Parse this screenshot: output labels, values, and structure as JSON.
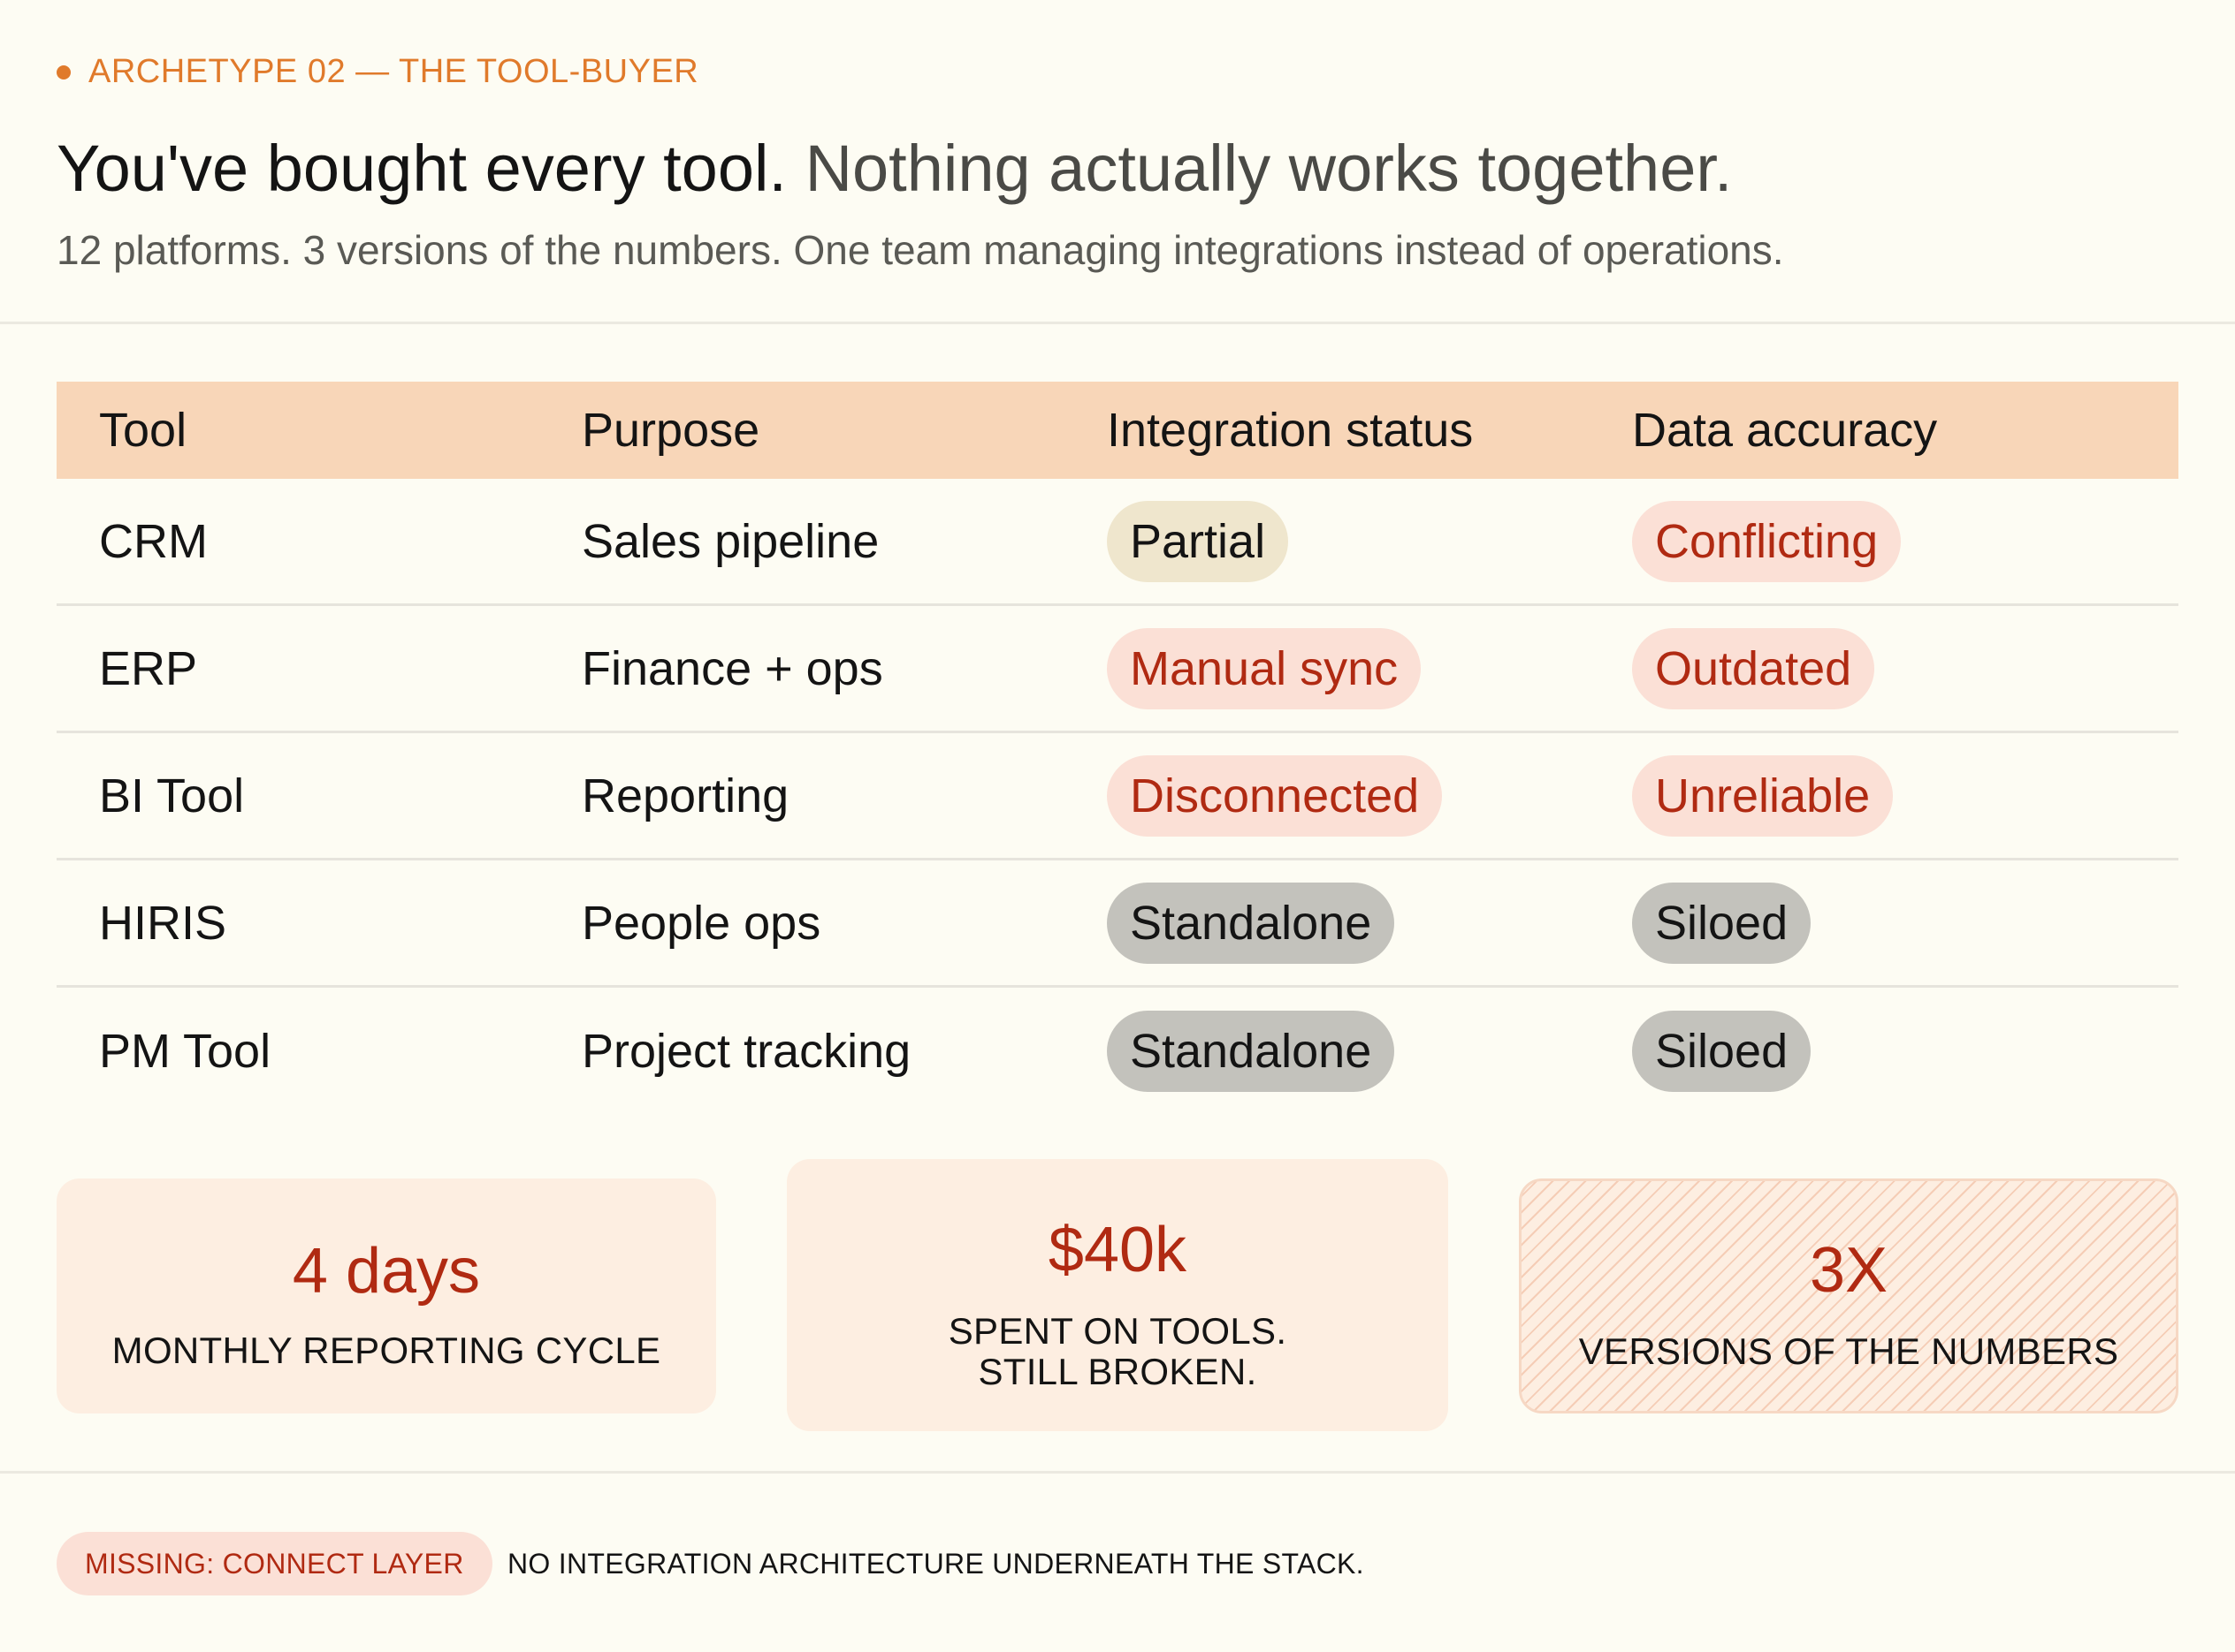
{
  "eyebrow": "ARCHETYPE 02 — THE TOOL-BUYER",
  "headline": {
    "strong": "You've bought every tool.",
    "soft": "Nothing actually works together."
  },
  "subline": "12 platforms. 3 versions of the numbers. One team managing integrations instead of operations.",
  "table": {
    "headers": [
      "Tool",
      "Purpose",
      "Integration status",
      "Data accuracy"
    ],
    "rows": [
      {
        "tool": "CRM",
        "purpose": "Sales pipeline",
        "status": "Partial",
        "accuracy": "Conflicting"
      },
      {
        "tool": "ERP",
        "purpose": "Finance + ops",
        "status": "Manual sync",
        "accuracy": "Outdated"
      },
      {
        "tool": "BI Tool",
        "purpose": "Reporting",
        "status": "Disconnected",
        "accuracy": "Unreliable"
      },
      {
        "tool": "HIRIS",
        "purpose": "People ops",
        "status": "Standalone",
        "accuracy": "Siloed"
      },
      {
        "tool": "PM Tool",
        "purpose": "Project tracking",
        "status": "Standalone",
        "accuracy": "Siloed"
      }
    ]
  },
  "stats": [
    {
      "value": "4 days",
      "label": "MONTHLY REPORTING CYCLE"
    },
    {
      "value": "$40k",
      "label_line1": "SPENT ON TOOLS.",
      "label_line2": "STILL BROKEN."
    },
    {
      "value": "3X",
      "label": "VERSIONS OF THE NUMBERS"
    }
  ],
  "footer": {
    "badge": "MISSING: CONNECT LAYER",
    "note": "NO INTEGRATION ARCHITECTURE UNDERNEATH THE STACK."
  },
  "colors": {
    "accent": "#e07a2b",
    "alert": "#b02a12",
    "header_band": "#f8d6b8",
    "stat_bg": "#fdeee1"
  }
}
